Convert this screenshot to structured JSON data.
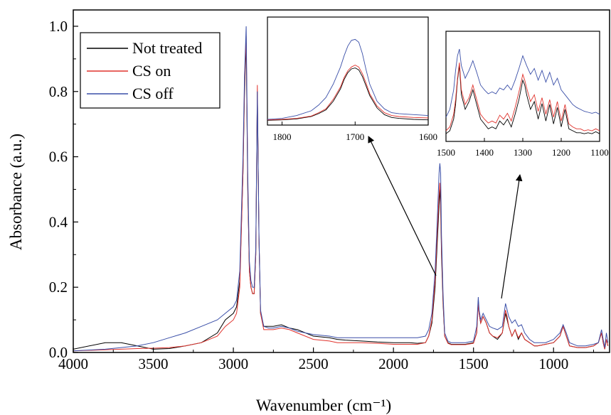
{
  "chart_data": {
    "type": "line",
    "xlabel": "Wavenumber (cm⁻¹)",
    "ylabel": "Absorbance (a.u.)",
    "xlim": [
      4000,
      650
    ],
    "ylim": [
      0,
      1.05
    ],
    "xticks": [
      "4000",
      "3500",
      "3000",
      "2500",
      "2000",
      "1500",
      "1000"
    ],
    "yticks": [
      "0.0",
      "0.2",
      "0.4",
      "0.6",
      "0.8",
      "1.0"
    ],
    "legend_position": "top-left",
    "x": [
      4000,
      3800,
      3700,
      3600,
      3500,
      3400,
      3300,
      3200,
      3100,
      3050,
      3000,
      2980,
      2960,
      2940,
      2930,
      2920,
      2910,
      2900,
      2890,
      2880,
      2870,
      2860,
      2850,
      2840,
      2830,
      2810,
      2780,
      2750,
      2700,
      2650,
      2600,
      2500,
      2400,
      2350,
      2300,
      2200,
      2100,
      2000,
      1900,
      1850,
      1800,
      1780,
      1760,
      1740,
      1725,
      1715,
      1710,
      1705,
      1700,
      1690,
      1680,
      1660,
      1640,
      1600,
      1550,
      1500,
      1480,
      1470,
      1465,
      1455,
      1440,
      1420,
      1400,
      1380,
      1350,
      1320,
      1300,
      1290,
      1280,
      1260,
      1240,
      1220,
      1200,
      1180,
      1150,
      1120,
      1100,
      1050,
      1000,
      960,
      940,
      920,
      900,
      850,
      800,
      750,
      720,
      700,
      690,
      680,
      670,
      660
    ],
    "series": [
      {
        "name": "Not treated",
        "color": "#000000",
        "values": [
          0.01,
          0.03,
          0.03,
          0.02,
          0.01,
          0.012,
          0.02,
          0.03,
          0.06,
          0.1,
          0.12,
          0.14,
          0.22,
          0.55,
          0.8,
          0.95,
          0.5,
          0.25,
          0.2,
          0.18,
          0.18,
          0.3,
          0.8,
          0.35,
          0.12,
          0.08,
          0.08,
          0.08,
          0.085,
          0.075,
          0.07,
          0.05,
          0.045,
          0.04,
          0.038,
          0.035,
          0.032,
          0.03,
          0.03,
          0.028,
          0.03,
          0.05,
          0.09,
          0.2,
          0.35,
          0.45,
          0.5,
          0.45,
          0.3,
          0.15,
          0.05,
          0.03,
          0.025,
          0.025,
          0.025,
          0.03,
          0.06,
          0.16,
          0.12,
          0.09,
          0.11,
          0.09,
          0.06,
          0.05,
          0.04,
          0.06,
          0.12,
          0.1,
          0.08,
          0.05,
          0.07,
          0.04,
          0.06,
          0.04,
          0.03,
          0.02,
          0.02,
          0.025,
          0.03,
          0.05,
          0.08,
          0.05,
          0.02,
          0.015,
          0.015,
          0.02,
          0.03,
          0.06,
          0.03,
          0.01,
          0.04,
          0.02
        ]
      },
      {
        "name": "CS on",
        "color": "#e1332d",
        "values": [
          0.005,
          0.008,
          0.01,
          0.012,
          0.013,
          0.015,
          0.02,
          0.03,
          0.05,
          0.08,
          0.1,
          0.12,
          0.2,
          0.55,
          0.82,
          0.97,
          0.52,
          0.25,
          0.2,
          0.18,
          0.18,
          0.3,
          0.82,
          0.35,
          0.12,
          0.07,
          0.07,
          0.07,
          0.075,
          0.07,
          0.06,
          0.04,
          0.035,
          0.03,
          0.03,
          0.03,
          0.028,
          0.025,
          0.025,
          0.025,
          0.03,
          0.05,
          0.1,
          0.22,
          0.38,
          0.48,
          0.52,
          0.48,
          0.32,
          0.16,
          0.05,
          0.028,
          0.024,
          0.024,
          0.024,
          0.028,
          0.06,
          0.15,
          0.12,
          0.09,
          0.11,
          0.09,
          0.06,
          0.05,
          0.045,
          0.06,
          0.13,
          0.11,
          0.08,
          0.05,
          0.07,
          0.045,
          0.06,
          0.04,
          0.03,
          0.02,
          0.02,
          0.025,
          0.03,
          0.05,
          0.08,
          0.05,
          0.02,
          0.015,
          0.015,
          0.02,
          0.03,
          0.06,
          0.03,
          0.01,
          0.04,
          0.02
        ]
      },
      {
        "name": "CS off",
        "color": "#3a4fa8",
        "values": [
          0.005,
          0.01,
          0.015,
          0.02,
          0.03,
          0.045,
          0.06,
          0.08,
          0.1,
          0.12,
          0.14,
          0.16,
          0.25,
          0.6,
          0.85,
          1.0,
          0.55,
          0.28,
          0.22,
          0.2,
          0.2,
          0.32,
          0.8,
          0.36,
          0.13,
          0.08,
          0.075,
          0.075,
          0.08,
          0.075,
          0.065,
          0.055,
          0.05,
          0.045,
          0.045,
          0.045,
          0.045,
          0.045,
          0.045,
          0.045,
          0.05,
          0.07,
          0.12,
          0.25,
          0.42,
          0.55,
          0.58,
          0.55,
          0.36,
          0.18,
          0.06,
          0.035,
          0.03,
          0.03,
          0.03,
          0.035,
          0.08,
          0.17,
          0.13,
          0.1,
          0.12,
          0.1,
          0.08,
          0.075,
          0.07,
          0.08,
          0.15,
          0.13,
          0.11,
          0.09,
          0.1,
          0.08,
          0.085,
          0.06,
          0.04,
          0.03,
          0.03,
          0.03,
          0.04,
          0.06,
          0.085,
          0.06,
          0.03,
          0.02,
          0.02,
          0.025,
          0.03,
          0.07,
          0.04,
          0.015,
          0.06,
          0.03
        ]
      }
    ],
    "insets": [
      {
        "xlim": [
          1820,
          1600
        ],
        "xticks": [
          "1800",
          "1700",
          "1600"
        ],
        "x": [
          1820,
          1800,
          1780,
          1760,
          1750,
          1740,
          1730,
          1720,
          1715,
          1710,
          1705,
          1700,
          1695,
          1690,
          1685,
          1680,
          1670,
          1660,
          1650,
          1640,
          1620,
          1600
        ],
        "series": [
          {
            "name": "Not treated",
            "color": "#000000",
            "values": [
              0.02,
              0.025,
              0.035,
              0.06,
              0.09,
              0.13,
              0.22,
              0.35,
              0.45,
              0.52,
              0.56,
              0.57,
              0.55,
              0.48,
              0.38,
              0.28,
              0.15,
              0.08,
              0.05,
              0.04,
              0.03,
              0.025
            ]
          },
          {
            "name": "CS on",
            "color": "#e1332d",
            "values": [
              0.025,
              0.03,
              0.04,
              0.065,
              0.1,
              0.14,
              0.24,
              0.37,
              0.47,
              0.54,
              0.58,
              0.6,
              0.58,
              0.51,
              0.41,
              0.3,
              0.17,
              0.1,
              0.07,
              0.06,
              0.05,
              0.045
            ]
          },
          {
            "name": "CS off",
            "color": "#3a4fa8",
            "values": [
              0.03,
              0.04,
              0.07,
              0.12,
              0.18,
              0.26,
              0.4,
              0.58,
              0.7,
              0.8,
              0.86,
              0.87,
              0.84,
              0.72,
              0.55,
              0.4,
              0.22,
              0.14,
              0.1,
              0.09,
              0.08,
              0.07
            ]
          }
        ]
      },
      {
        "xlim": [
          1500,
          1100
        ],
        "xticks": [
          "1500",
          "1400",
          "1300",
          "1200",
          "1100"
        ],
        "x": [
          1500,
          1490,
          1480,
          1475,
          1470,
          1465,
          1460,
          1450,
          1440,
          1430,
          1420,
          1410,
          1400,
          1390,
          1380,
          1370,
          1360,
          1350,
          1340,
          1330,
          1320,
          1310,
          1300,
          1295,
          1290,
          1280,
          1270,
          1260,
          1250,
          1240,
          1230,
          1220,
          1210,
          1200,
          1190,
          1180,
          1170,
          1160,
          1150,
          1140,
          1130,
          1120,
          1110,
          1100
        ],
        "series": [
          {
            "name": "Not treated",
            "color": "#000000",
            "values": [
              0.05,
              0.08,
              0.2,
              0.35,
              0.6,
              0.75,
              0.45,
              0.3,
              0.38,
              0.5,
              0.35,
              0.2,
              0.15,
              0.1,
              0.12,
              0.1,
              0.18,
              0.14,
              0.2,
              0.12,
              0.25,
              0.4,
              0.6,
              0.55,
              0.45,
              0.3,
              0.38,
              0.2,
              0.36,
              0.18,
              0.35,
              0.15,
              0.32,
              0.12,
              0.3,
              0.1,
              0.08,
              0.06,
              0.06,
              0.05,
              0.06,
              0.05,
              0.07,
              0.05
            ]
          },
          {
            "name": "CS on",
            "color": "#e1332d",
            "values": [
              0.08,
              0.12,
              0.25,
              0.4,
              0.62,
              0.78,
              0.5,
              0.35,
              0.42,
              0.55,
              0.4,
              0.25,
              0.2,
              0.16,
              0.18,
              0.16,
              0.24,
              0.2,
              0.26,
              0.18,
              0.32,
              0.48,
              0.66,
              0.6,
              0.52,
              0.38,
              0.45,
              0.28,
              0.42,
              0.25,
              0.4,
              0.22,
              0.38,
              0.18,
              0.35,
              0.15,
              0.12,
              0.1,
              0.1,
              0.08,
              0.09,
              0.08,
              0.1,
              0.08
            ]
          },
          {
            "name": "CS off",
            "color": "#3a4fa8",
            "values": [
              0.22,
              0.3,
              0.5,
              0.7,
              0.85,
              0.92,
              0.75,
              0.62,
              0.7,
              0.8,
              0.68,
              0.55,
              0.5,
              0.46,
              0.48,
              0.46,
              0.52,
              0.5,
              0.55,
              0.5,
              0.6,
              0.72,
              0.85,
              0.8,
              0.75,
              0.66,
              0.72,
              0.6,
              0.7,
              0.58,
              0.68,
              0.55,
              0.62,
              0.5,
              0.45,
              0.4,
              0.35,
              0.32,
              0.3,
              0.28,
              0.27,
              0.26,
              0.27,
              0.25
            ]
          }
        ]
      }
    ]
  }
}
